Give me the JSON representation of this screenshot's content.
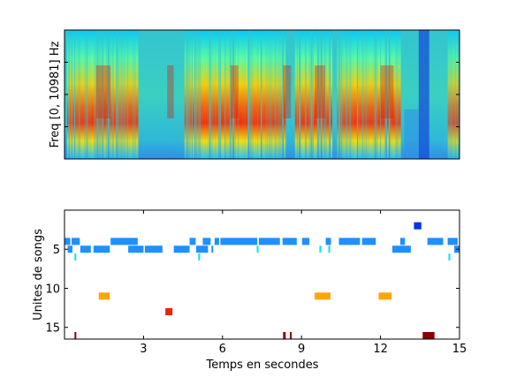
{
  "chart_data": [
    {
      "type": "heatmap",
      "ylabel": "Freq [0, 10981] Hz",
      "xlim": [
        0,
        15
      ],
      "colormap": "jet",
      "xticks": [],
      "yticks": []
    },
    {
      "type": "scatter",
      "xlabel": "Temps en secondes",
      "ylabel": "Unites de songs",
      "xlim": [
        0,
        15
      ],
      "ylim": [
        16.5,
        0
      ],
      "xticks": [
        3,
        6,
        9,
        12,
        15
      ],
      "xtick_labels": [
        "3",
        "6",
        "9",
        "12",
        "15"
      ],
      "yticks": [
        5,
        10,
        15
      ],
      "ytick_labels": [
        "5",
        "10",
        "15"
      ],
      "segments": [
        {
          "unit": 2,
          "start": 13.27,
          "end": 13.55,
          "color": "#0033ee"
        },
        {
          "unit": 4,
          "start": 0.0,
          "end": 0.22,
          "color": "#1e90ff"
        },
        {
          "unit": 4,
          "start": 0.27,
          "end": 0.58,
          "color": "#1e90ff"
        },
        {
          "unit": 4,
          "start": 1.75,
          "end": 2.78,
          "color": "#1e90ff"
        },
        {
          "unit": 4,
          "start": 4.75,
          "end": 4.98,
          "color": "#1e90ff"
        },
        {
          "unit": 4,
          "start": 5.25,
          "end": 5.55,
          "color": "#1e90ff"
        },
        {
          "unit": 4,
          "start": 5.7,
          "end": 5.87,
          "color": "#1e90ff"
        },
        {
          "unit": 4,
          "start": 5.92,
          "end": 7.32,
          "color": "#1e90ff"
        },
        {
          "unit": 4,
          "start": 7.38,
          "end": 8.18,
          "color": "#1e90ff"
        },
        {
          "unit": 4,
          "start": 8.28,
          "end": 8.82,
          "color": "#1e90ff"
        },
        {
          "unit": 4,
          "start": 9.02,
          "end": 9.3,
          "color": "#1e90ff"
        },
        {
          "unit": 4,
          "start": 9.92,
          "end": 10.12,
          "color": "#1e90ff"
        },
        {
          "unit": 4,
          "start": 10.42,
          "end": 11.22,
          "color": "#1e90ff"
        },
        {
          "unit": 4,
          "start": 11.3,
          "end": 11.82,
          "color": "#1e90ff"
        },
        {
          "unit": 4,
          "start": 12.75,
          "end": 12.93,
          "color": "#1e90ff"
        },
        {
          "unit": 4,
          "start": 13.78,
          "end": 14.38,
          "color": "#1e90ff"
        },
        {
          "unit": 4,
          "start": 14.55,
          "end": 14.93,
          "color": "#1e90ff"
        },
        {
          "unit": 5,
          "start": 0.12,
          "end": 0.3,
          "color": "#1e90ff"
        },
        {
          "unit": 5,
          "start": 0.6,
          "end": 1.0,
          "color": "#1e90ff"
        },
        {
          "unit": 5,
          "start": 1.1,
          "end": 1.72,
          "color": "#1e90ff"
        },
        {
          "unit": 5,
          "start": 2.42,
          "end": 3.0,
          "color": "#1e90ff"
        },
        {
          "unit": 5,
          "start": 3.05,
          "end": 3.72,
          "color": "#1e90ff"
        },
        {
          "unit": 5,
          "start": 4.15,
          "end": 4.75,
          "color": "#1e90ff"
        },
        {
          "unit": 5,
          "start": 5.0,
          "end": 5.45,
          "color": "#1e90ff"
        },
        {
          "unit": 5,
          "start": 5.58,
          "end": 5.62,
          "color": "#1e90ff"
        },
        {
          "unit": 5,
          "start": 12.45,
          "end": 13.15,
          "color": "#1e90ff"
        },
        {
          "unit": 5,
          "start": 14.8,
          "end": 15.0,
          "color": "#1e90ff"
        },
        {
          "unit": 5,
          "start": 7.3,
          "end": 7.36,
          "color": "#00e5ee"
        },
        {
          "unit": 5,
          "start": 9.68,
          "end": 9.74,
          "color": "#00e5ee"
        },
        {
          "unit": 5,
          "start": 10.02,
          "end": 10.06,
          "color": "#00e5ee"
        },
        {
          "unit": 6,
          "start": 0.38,
          "end": 0.44,
          "color": "#00e5ee"
        },
        {
          "unit": 6,
          "start": 5.08,
          "end": 5.12,
          "color": "#00e5ee"
        },
        {
          "unit": 6,
          "start": 14.58,
          "end": 14.62,
          "color": "#00e5ee"
        },
        {
          "unit": 11,
          "start": 1.3,
          "end": 1.72,
          "color": "#ffa500"
        },
        {
          "unit": 11,
          "start": 9.5,
          "end": 10.1,
          "color": "#ffa500"
        },
        {
          "unit": 11,
          "start": 11.93,
          "end": 12.42,
          "color": "#ffa500"
        },
        {
          "unit": 13,
          "start": 3.83,
          "end": 4.1,
          "color": "#ee2200"
        },
        {
          "unit": 16.3,
          "start": 0.38,
          "end": 0.44,
          "color": "#8b0000"
        },
        {
          "unit": 16.3,
          "start": 8.3,
          "end": 8.4,
          "color": "#8b0000"
        },
        {
          "unit": 16.3,
          "start": 8.56,
          "end": 8.6,
          "color": "#8b0000"
        },
        {
          "unit": 16.3,
          "start": 13.6,
          "end": 14.05,
          "color": "#8b0000"
        }
      ]
    }
  ]
}
